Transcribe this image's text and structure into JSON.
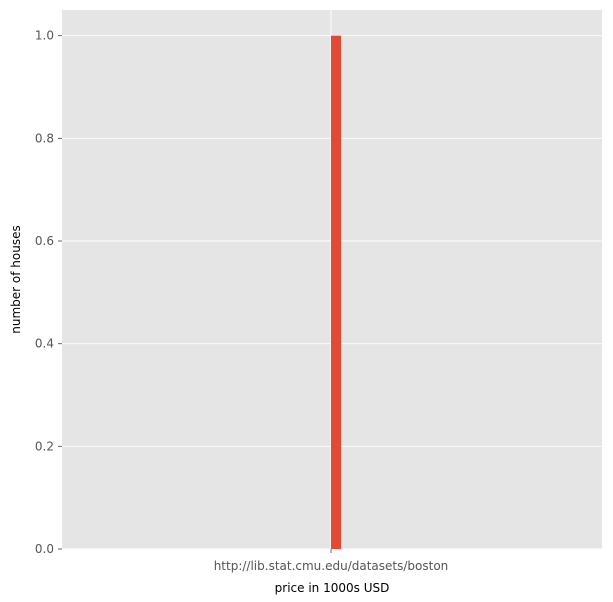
{
  "chart_data": {
    "type": "bar",
    "title": "",
    "xlabel": "price in 1000s USD",
    "ylabel": "number of houses",
    "categories": [
      "http://lib.stat.cmu.edu/datasets/boston"
    ],
    "values": [
      1.0
    ],
    "ylim": [
      0,
      1.05
    ],
    "yticks": [
      0.0,
      0.2,
      0.4,
      0.6,
      0.8,
      1.0
    ],
    "ytick_labels": [
      "0.0",
      "0.2",
      "0.4",
      "0.6",
      "0.8",
      "1.0"
    ],
    "grid": true,
    "legend": "none",
    "colors": {
      "bar": "#E24A33",
      "plot_background": "#E5E5E5",
      "grid": "#FFFFFF",
      "tick_text": "#555555",
      "label_text": "#000000"
    }
  }
}
